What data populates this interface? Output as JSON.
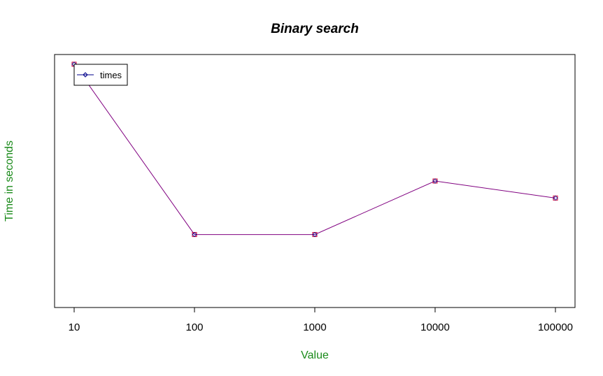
{
  "chart_data": {
    "type": "line",
    "title": "Binary search",
    "xlabel": "Value",
    "ylabel": "Time in seconds",
    "categories": [
      "10",
      "100",
      "1000",
      "10000",
      "100000"
    ],
    "series": [
      {
        "name": "times",
        "values": [
          1.0,
          0.3,
          0.3,
          0.52,
          0.45
        ]
      }
    ],
    "ylim": [
      0,
      1.04
    ],
    "y_ticks_shown": false,
    "grid": false,
    "legend": "top-left",
    "colors": {
      "line": "#800080",
      "marker": "#cc0033",
      "legend_line": "#00008b",
      "axis_label": "#1a8a1a",
      "frame": "#000000"
    }
  }
}
